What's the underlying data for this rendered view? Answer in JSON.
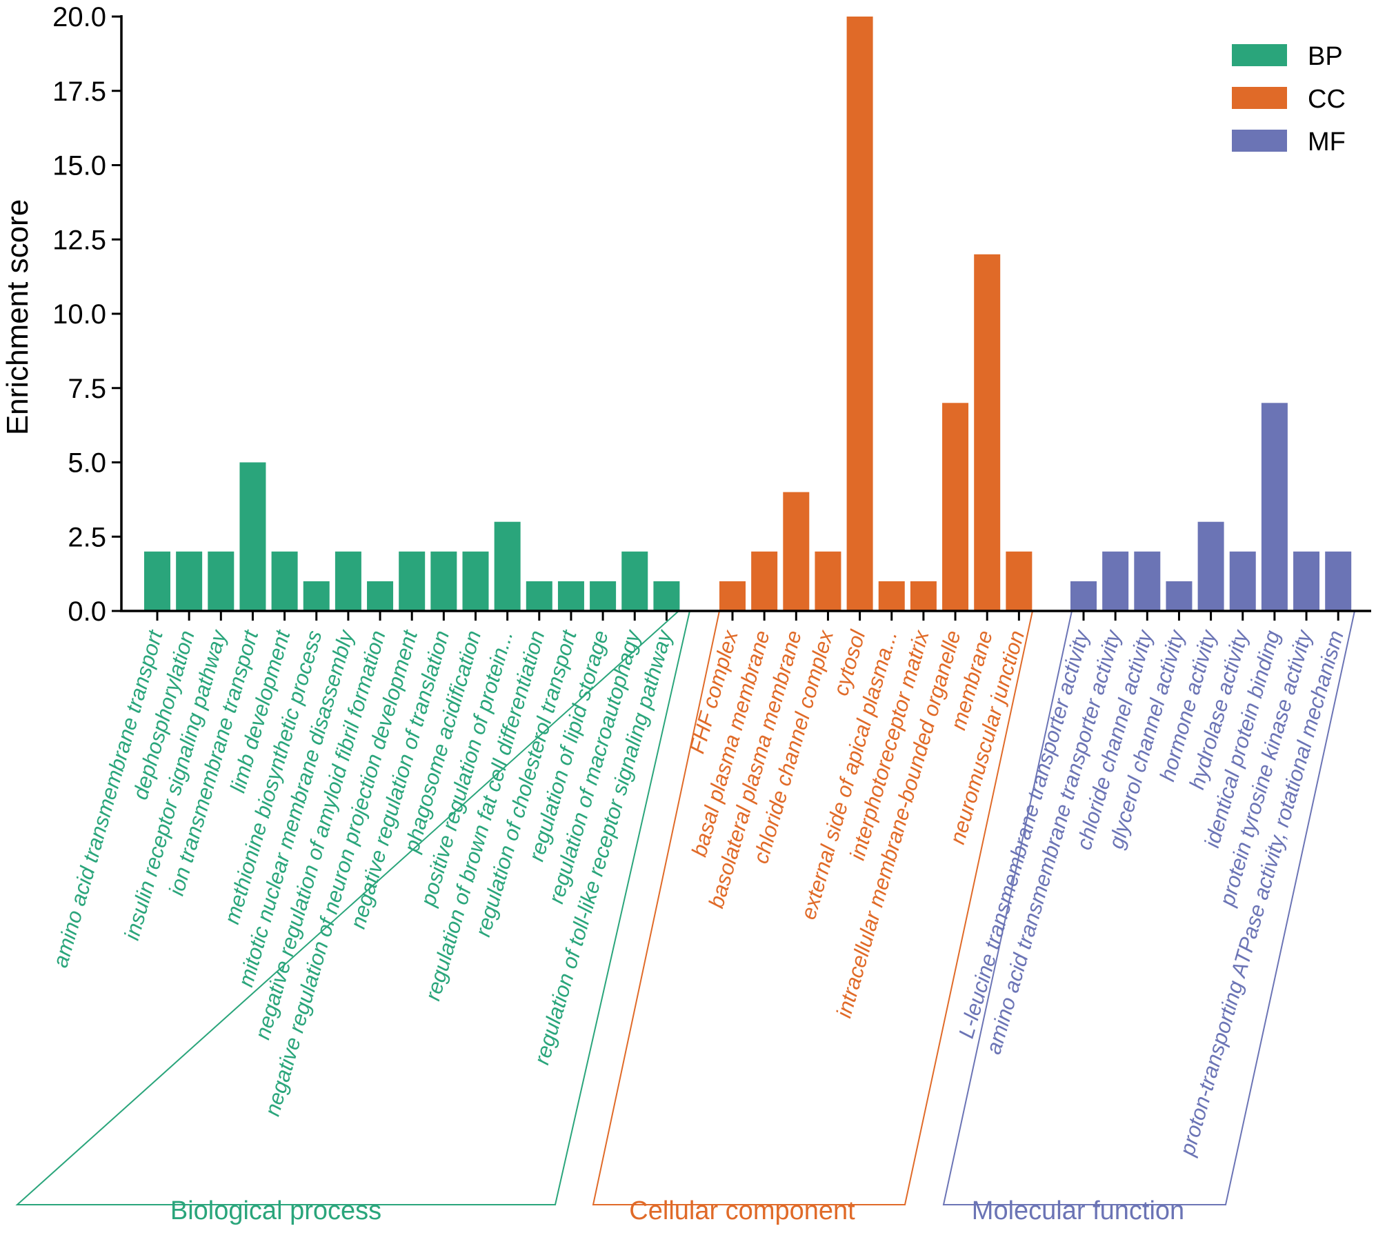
{
  "chart_data": {
    "type": "bar",
    "title": "",
    "xlabel": "",
    "ylabel": "Enrichment score",
    "ylim": [
      0,
      20
    ],
    "yticks": [
      "0.0",
      "2.5",
      "5.0",
      "7.5",
      "10.0",
      "12.5",
      "15.0",
      "17.5",
      "20.0"
    ],
    "legend": {
      "placement": "top-right",
      "entries": [
        {
          "key": "BP",
          "label": "BP",
          "color": "#2aa57b"
        },
        {
          "key": "CC",
          "label": "CC",
          "color": "#e06a28"
        },
        {
          "key": "MF",
          "label": "MF",
          "color": "#6b74b5"
        }
      ]
    },
    "groups": [
      {
        "key": "BP",
        "name": "Biological process",
        "color": "#2aa57b",
        "categories": [
          "amino acid transmembrane transport",
          "dephosphorylation",
          "insulin receptor signaling pathway",
          "ion transmembrane transport",
          "limb development",
          "methionine biosynthetic process",
          "mitotic nuclear membrane disassembly",
          "negative regulation of amyloid fibril formation",
          "negative regulation of neuron projection development",
          "negative regulation of translation",
          "phagosome acidification",
          "positive regulation of protein...",
          "regulation of brown fat cell differentiation",
          "regulation of cholesterol transport",
          "regulation of lipid storage",
          "regulation of macroautophagy",
          "regulation of toll-like receptor signaling pathway"
        ],
        "values": [
          2,
          2,
          2,
          5,
          2,
          1,
          2,
          1,
          2,
          2,
          2,
          3,
          1,
          1,
          1,
          2,
          1
        ]
      },
      {
        "key": "CC",
        "name": "Cellular component",
        "color": "#e06a28",
        "categories": [
          "FHF complex",
          "basal plasma membrane",
          "basolateral plasma membrane",
          "chloride channel complex",
          "cytosol",
          "external side of apical plasma...",
          "interphotoreceptor matrix",
          "intracellular membrane-bounded organelle",
          "membrane",
          "neuromuscular junction"
        ],
        "values": [
          1,
          2,
          4,
          2,
          20,
          1,
          1,
          7,
          12,
          2
        ]
      },
      {
        "key": "MF",
        "name": "Molecular function",
        "color": "#6b74b5",
        "categories": [
          "L-leucine transmembrane transporter activity",
          "amino acid transmembrane transporter activity",
          "chloride channel activity",
          "glycerol channel activity",
          "hormone activity",
          "hydrolase activity",
          "identical protein binding",
          "protein tyrosine kinase activity",
          "proton-transporting ATPase activity, rotational mechanism"
        ],
        "values": [
          1,
          2,
          2,
          1,
          3,
          2,
          7,
          2,
          2
        ]
      }
    ]
  }
}
